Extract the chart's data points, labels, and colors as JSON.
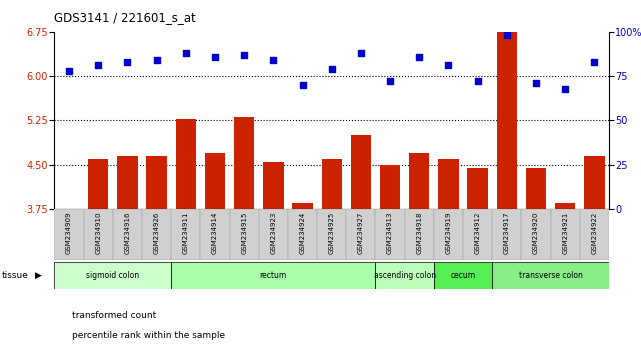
{
  "title": "GDS3141 / 221601_s_at",
  "samples": [
    "GSM234909",
    "GSM234910",
    "GSM234916",
    "GSM234926",
    "GSM234911",
    "GSM234914",
    "GSM234915",
    "GSM234923",
    "GSM234924",
    "GSM234925",
    "GSM234927",
    "GSM234913",
    "GSM234918",
    "GSM234919",
    "GSM234912",
    "GSM234917",
    "GSM234920",
    "GSM234921",
    "GSM234922"
  ],
  "bar_values": [
    3.75,
    4.6,
    4.65,
    4.65,
    5.28,
    4.7,
    5.3,
    4.55,
    3.85,
    4.6,
    5.0,
    4.5,
    4.7,
    4.6,
    4.45,
    6.75,
    4.45,
    3.85,
    4.65
  ],
  "dot_values": [
    78,
    81,
    83,
    84,
    88,
    86,
    87,
    84,
    70,
    79,
    88,
    72,
    86,
    81,
    72,
    98,
    71,
    68,
    83
  ],
  "ylim_left": [
    3.75,
    6.75
  ],
  "ylim_right": [
    0,
    100
  ],
  "yticks_left": [
    3.75,
    4.5,
    5.25,
    6.0,
    6.75
  ],
  "yticks_right": [
    0,
    25,
    50,
    75,
    100
  ],
  "hlines": [
    4.5,
    5.25,
    6.0
  ],
  "bar_color": "#cc2200",
  "dot_color": "#0000cc",
  "bar_bottom": 3.75,
  "tissue_groups": [
    {
      "label": "sigmoid colon",
      "start": 0,
      "end": 4,
      "color": "#ccffcc"
    },
    {
      "label": "rectum",
      "start": 4,
      "end": 11,
      "color": "#aaffaa"
    },
    {
      "label": "ascending colon",
      "start": 11,
      "end": 13,
      "color": "#bbffbb"
    },
    {
      "label": "cecum",
      "start": 13,
      "end": 15,
      "color": "#55ee55"
    },
    {
      "label": "transverse colon",
      "start": 15,
      "end": 19,
      "color": "#88ee88"
    }
  ],
  "legend_items": [
    {
      "label": "transformed count",
      "color": "#cc2200"
    },
    {
      "label": "percentile rank within the sample",
      "color": "#0000cc"
    }
  ],
  "tissue_label": "tissue",
  "xticklabel_bg": "#d0d0d0"
}
